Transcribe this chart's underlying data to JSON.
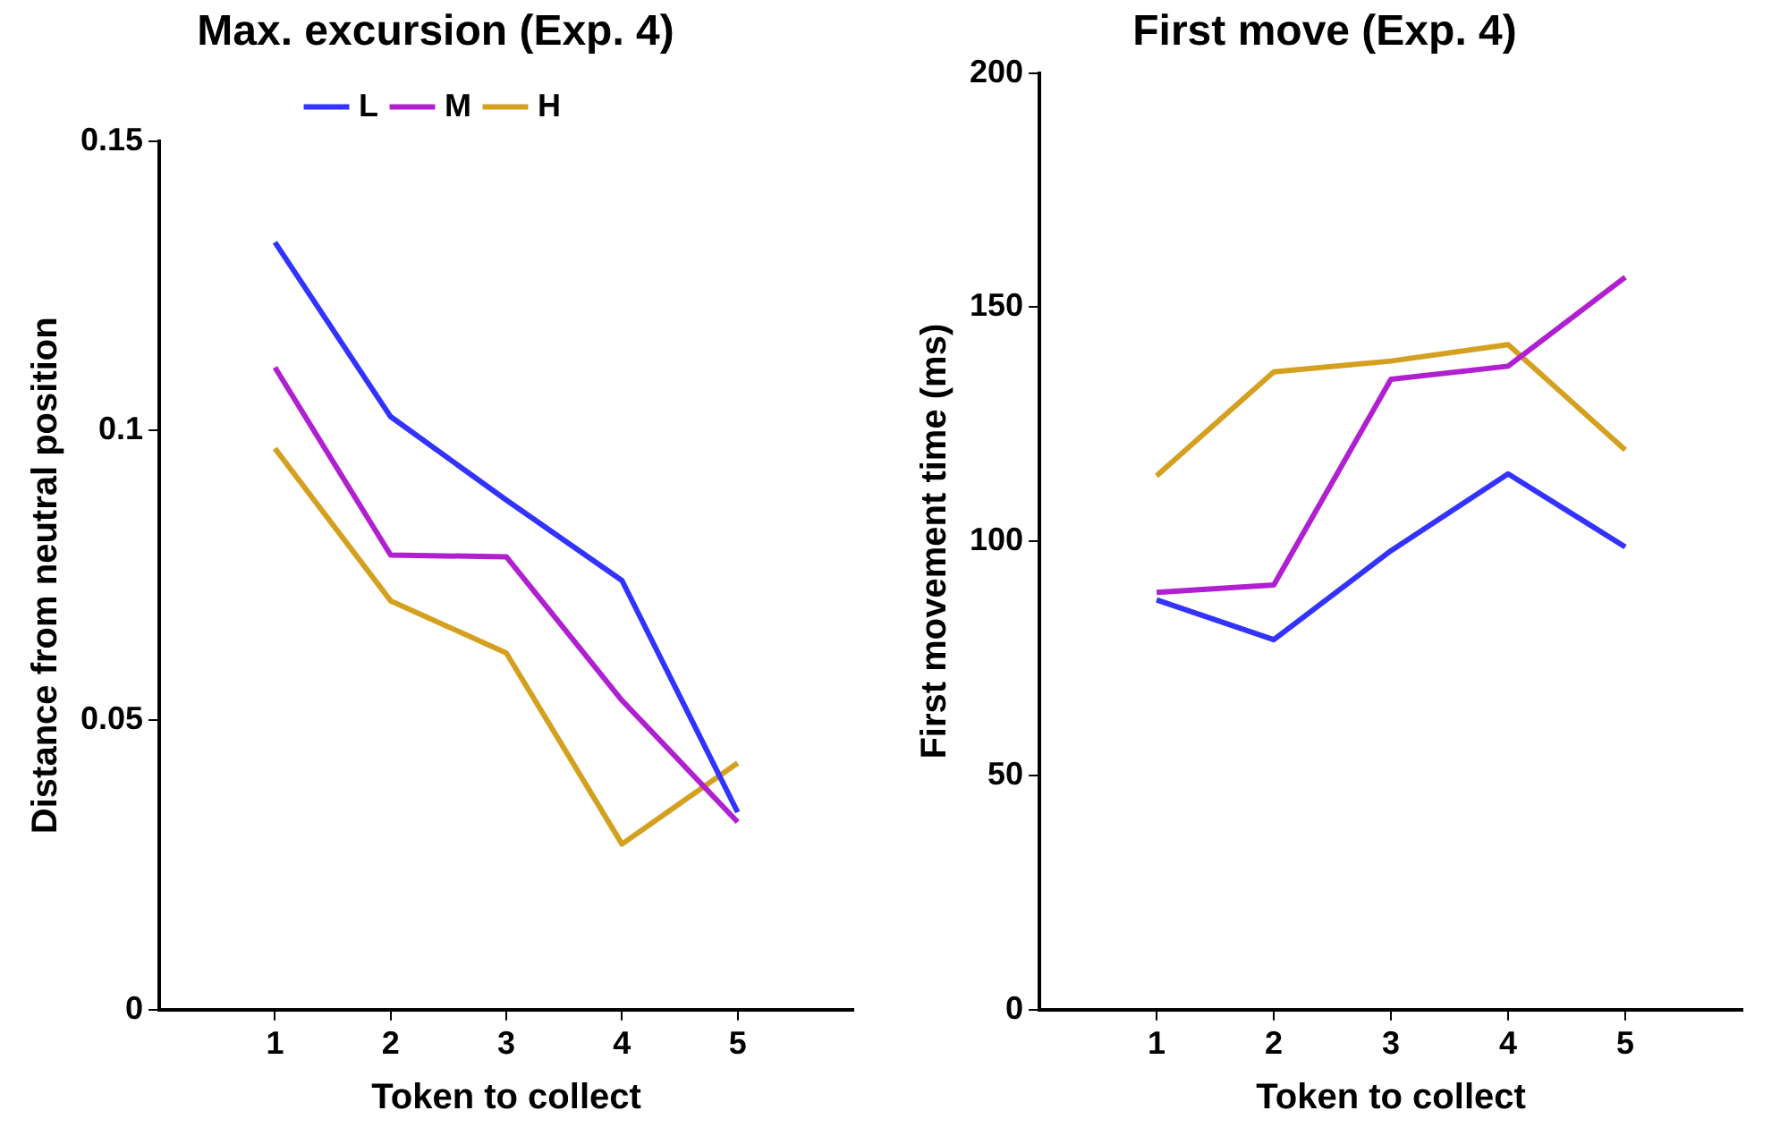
{
  "chart_data": [
    {
      "type": "line",
      "title": "Max. excursion (Exp. 4)",
      "xlabel": "Token to collect",
      "ylabel": "Distance from neutral position",
      "x": [
        1,
        2,
        3,
        4,
        5
      ],
      "xlim": [
        0,
        6
      ],
      "xticks": [
        1,
        2,
        3,
        4,
        5
      ],
      "ylim": [
        0,
        0.15
      ],
      "yticks": [
        0,
        0.05,
        0.1,
        0.15
      ],
      "grid": false,
      "legend": "top",
      "marker": "none",
      "series": [
        {
          "name": "L",
          "color": "#3333ff",
          "values": [
            0.1325,
            0.1024,
            0.088,
            0.0741,
            0.0341
          ]
        },
        {
          "name": "M",
          "color": "#b020d0",
          "values": [
            0.1109,
            0.0785,
            0.0782,
            0.0534,
            0.0324
          ]
        },
        {
          "name": "H",
          "color": "#d4a020",
          "values": [
            0.0969,
            0.0706,
            0.0616,
            0.0286,
            0.0426
          ]
        }
      ]
    },
    {
      "type": "line",
      "title": "First move (Exp. 4)",
      "xlabel": "Token to collect",
      "ylabel": "First movement time (ms)",
      "x": [
        1,
        2,
        3,
        4,
        5
      ],
      "xlim": [
        0,
        6
      ],
      "xticks": [
        1,
        2,
        3,
        4,
        5
      ],
      "ylim": [
        0,
        200
      ],
      "yticks": [
        0,
        50,
        100,
        150,
        200
      ],
      "grid": false,
      "marker": "none",
      "series": [
        {
          "color": "#3333ff",
          "values": [
            87.5,
            79,
            98,
            114.4,
            98.8
          ]
        },
        {
          "color": "#b020d0",
          "values": [
            89.1,
            90.7,
            134.6,
            137.4,
            156.4
          ]
        },
        {
          "color": "#d4a020",
          "values": [
            114,
            136.2,
            138.5,
            142,
            119.5
          ]
        }
      ]
    }
  ]
}
